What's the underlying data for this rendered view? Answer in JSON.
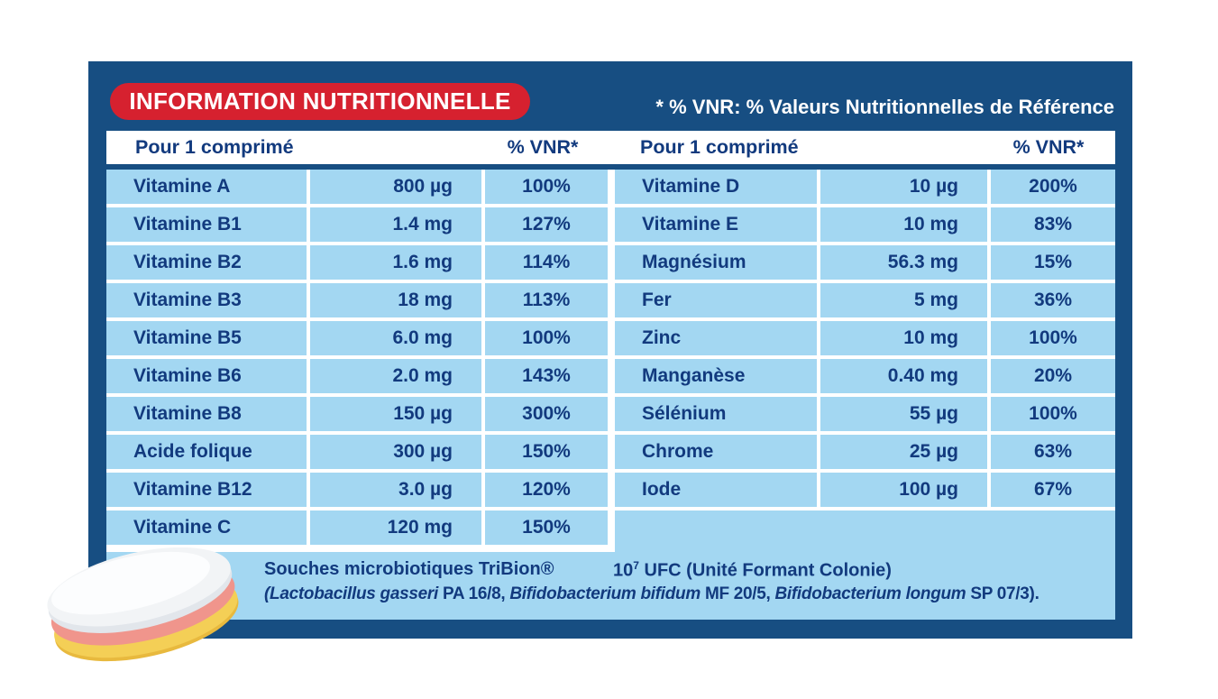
{
  "header": {
    "badge": "INFORMATION NUTRITIONNELLE",
    "footnote": "* % VNR: % Valeurs Nutritionnelles de Référence"
  },
  "table_header": {
    "left_label": "Pour 1 comprimé",
    "left_vnr": "% VNR*",
    "right_label": "Pour 1 comprimé",
    "right_vnr": "% VNR*"
  },
  "left_rows": [
    {
      "name": "Vitamine A",
      "amount": "800 µg",
      "vnr": "100%"
    },
    {
      "name": "Vitamine B1",
      "amount": "1.4 mg",
      "vnr": "127%"
    },
    {
      "name": "Vitamine B2",
      "amount": "1.6 mg",
      "vnr": "114%"
    },
    {
      "name": "Vitamine B3",
      "amount": "18 mg",
      "vnr": "113%"
    },
    {
      "name": "Vitamine B5",
      "amount": "6.0 mg",
      "vnr": "100%"
    },
    {
      "name": "Vitamine B6",
      "amount": "2.0 mg",
      "vnr": "143%"
    },
    {
      "name": "Vitamine B8",
      "amount": "150 µg",
      "vnr": "300%"
    },
    {
      "name": "Acide folique",
      "amount": "300 µg",
      "vnr": "150%"
    },
    {
      "name": "Vitamine B12",
      "amount": "3.0 µg",
      "vnr": "120%"
    },
    {
      "name": "Vitamine C",
      "amount": "120 mg",
      "vnr": "150%"
    }
  ],
  "right_rows": [
    {
      "name": "Vitamine D",
      "amount": "10 µg",
      "vnr": "200%"
    },
    {
      "name": "Vitamine E",
      "amount": "10 mg",
      "vnr": "83%"
    },
    {
      "name": "Magnésium",
      "amount": "56.3 mg",
      "vnr": "15%"
    },
    {
      "name": "Fer",
      "amount": "5 mg",
      "vnr": "36%"
    },
    {
      "name": "Zinc",
      "amount": "10 mg",
      "vnr": "100%"
    },
    {
      "name": "Manganèse",
      "amount": "0.40 mg",
      "vnr": "20%"
    },
    {
      "name": "Sélénium",
      "amount": "55 µg",
      "vnr": "100%"
    },
    {
      "name": "Chrome",
      "amount": "25 µg",
      "vnr": "63%"
    },
    {
      "name": "Iode",
      "amount": "100 µg",
      "vnr": "67%"
    }
  ],
  "footer": {
    "line1_left": "Souches microbiotiques TriBion®",
    "cfu_base": "10",
    "cfu_exp": "7",
    "cfu_rest": " UFC (Unité Formant Colonie)",
    "line2_open": "(",
    "species1": "Lactobacillus gasseri",
    "code1": " PA 16/8, ",
    "species2": "Bifidobacterium bifidum",
    "code2": " MF 20/5, ",
    "species3": "Bifidobacterium longum",
    "code3": " SP 07/3)."
  },
  "colors": {
    "panel_navy": "#174e82",
    "badge_red": "#d6212f",
    "cell_blue": "#a3d7f2",
    "text_navy": "#123a7e",
    "white": "#ffffff",
    "pill_white": "#f8fafc",
    "pill_gray": "#e2e6eb",
    "pill_pink": "#f0958c",
    "pill_yellow": "#f4cf56",
    "pill_yellow_dark": "#e8b93e"
  }
}
